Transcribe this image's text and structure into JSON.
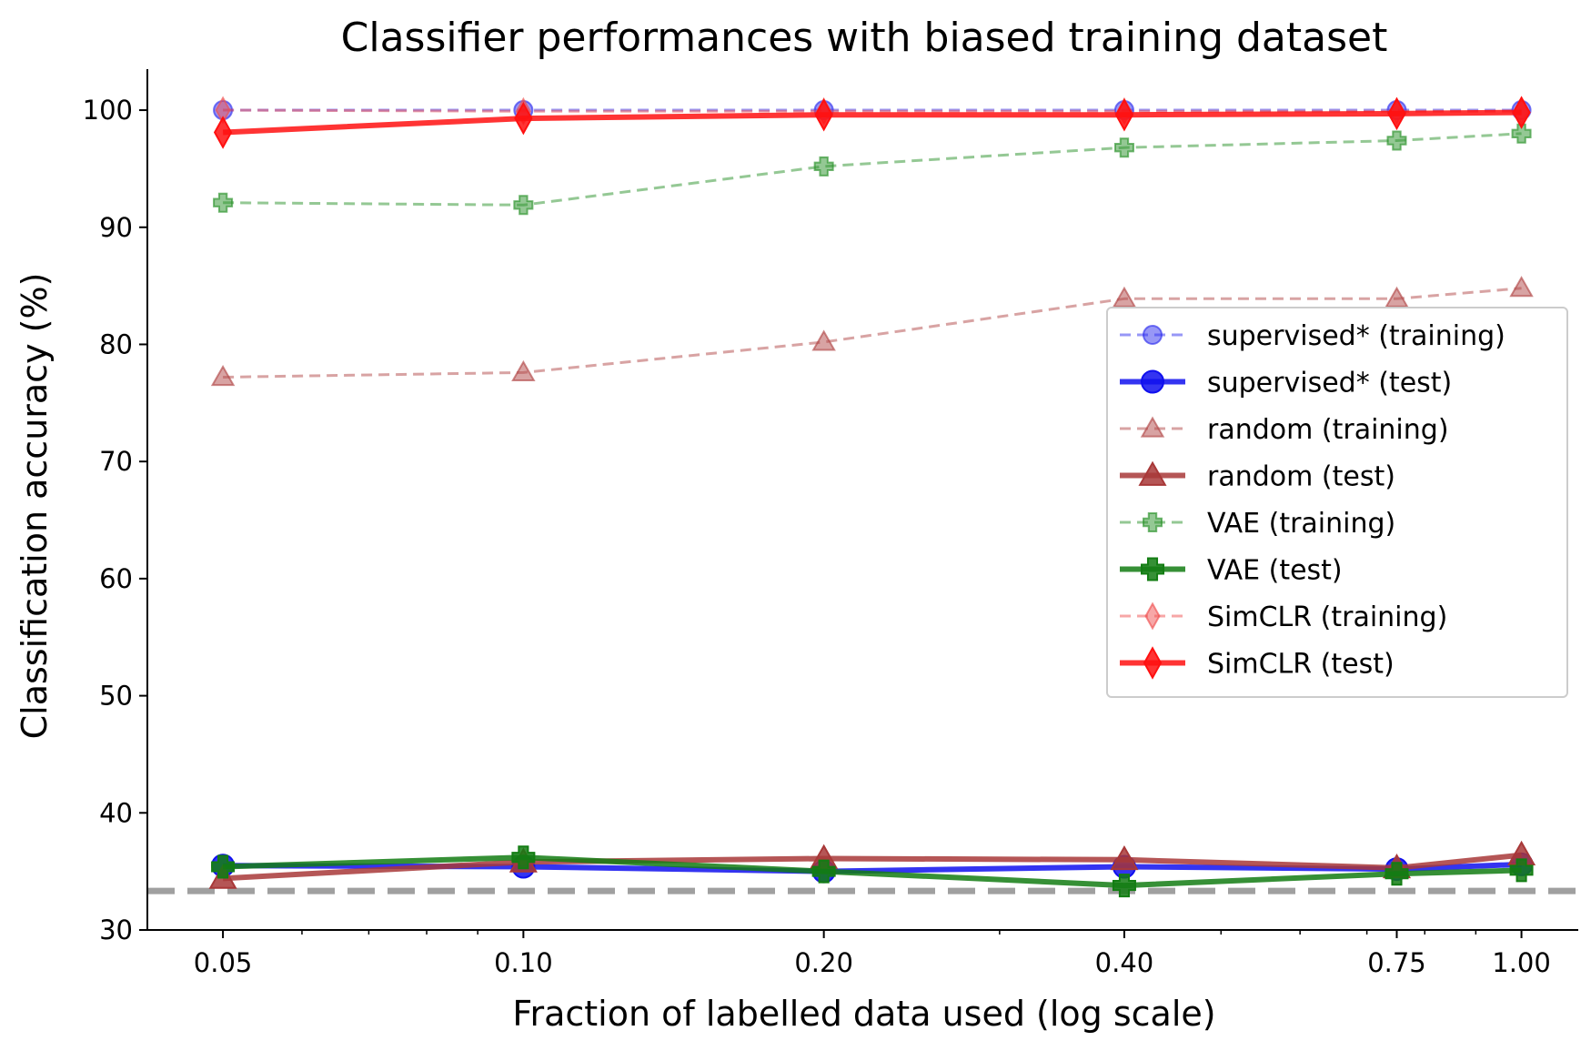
{
  "chart_data": {
    "type": "line",
    "title": "Classifier performances with biased training dataset",
    "xlabel": "Fraction of labelled data used (log scale)",
    "ylabel": "Classification accuracy (%)",
    "x_scale": "log",
    "xlim": [
      0.042,
      1.14
    ],
    "ylim": [
      30,
      103.5
    ],
    "x_ticks": [
      0.05,
      0.1,
      0.2,
      0.4,
      0.75,
      1.0
    ],
    "x_tick_labels": [
      "0.05",
      "0.10",
      "0.20",
      "0.40",
      "0.75",
      "1.00"
    ],
    "y_ticks": [
      30,
      40,
      50,
      60,
      70,
      80,
      90,
      100
    ],
    "y_tick_labels": [
      "30",
      "40",
      "50",
      "60",
      "70",
      "80",
      "90",
      "100"
    ],
    "x": [
      0.05,
      0.1,
      0.2,
      0.4,
      0.75,
      1.0
    ],
    "chance_level": 33.33,
    "chance_color": "#a0a0a0",
    "grid": false,
    "legend_position": "right",
    "series": [
      {
        "name": "supervised* (training)",
        "color": "#3030ee",
        "style": "dashed",
        "marker": "circle",
        "alpha": 0.5,
        "width": 3,
        "values": [
          100,
          100,
          100,
          100,
          100,
          100
        ]
      },
      {
        "name": "supervised* (test)",
        "color": "#1010ee",
        "style": "solid",
        "marker": "circle",
        "alpha": 0.85,
        "width": 6,
        "values": [
          35.5,
          35.4,
          35.0,
          35.4,
          35.2,
          35.6
        ]
      },
      {
        "name": "random (training)",
        "color": "#b24848",
        "style": "dashed",
        "marker": "triangle",
        "alpha": 0.5,
        "width": 3,
        "values": [
          77.2,
          77.6,
          80.2,
          83.9,
          83.9,
          84.8
        ]
      },
      {
        "name": "random (test)",
        "color": "#a83838",
        "style": "solid",
        "marker": "triangle",
        "alpha": 0.85,
        "width": 6,
        "values": [
          34.4,
          35.8,
          36.1,
          36.0,
          35.3,
          36.4
        ]
      },
      {
        "name": "VAE (training)",
        "color": "#2a922a",
        "style": "dashed",
        "marker": "plus",
        "alpha": 0.5,
        "width": 3,
        "values": [
          92.1,
          91.9,
          95.2,
          96.8,
          97.4,
          98.0
        ]
      },
      {
        "name": "VAE (test)",
        "color": "#137d13",
        "style": "solid",
        "marker": "plus",
        "alpha": 0.85,
        "width": 6,
        "values": [
          35.4,
          36.2,
          35.0,
          33.8,
          34.8,
          35.1
        ]
      },
      {
        "name": "SimCLR (training)",
        "color": "#f05050",
        "style": "dashed",
        "marker": "diamond",
        "alpha": 0.5,
        "width": 3,
        "values": [
          100,
          99.9,
          99.9,
          99.9,
          99.9,
          99.9
        ]
      },
      {
        "name": "SimCLR (test)",
        "color": "#ff1010",
        "style": "solid",
        "marker": "diamond",
        "alpha": 0.85,
        "width": 6,
        "values": [
          98.1,
          99.3,
          99.6,
          99.6,
          99.7,
          99.8
        ]
      }
    ]
  }
}
